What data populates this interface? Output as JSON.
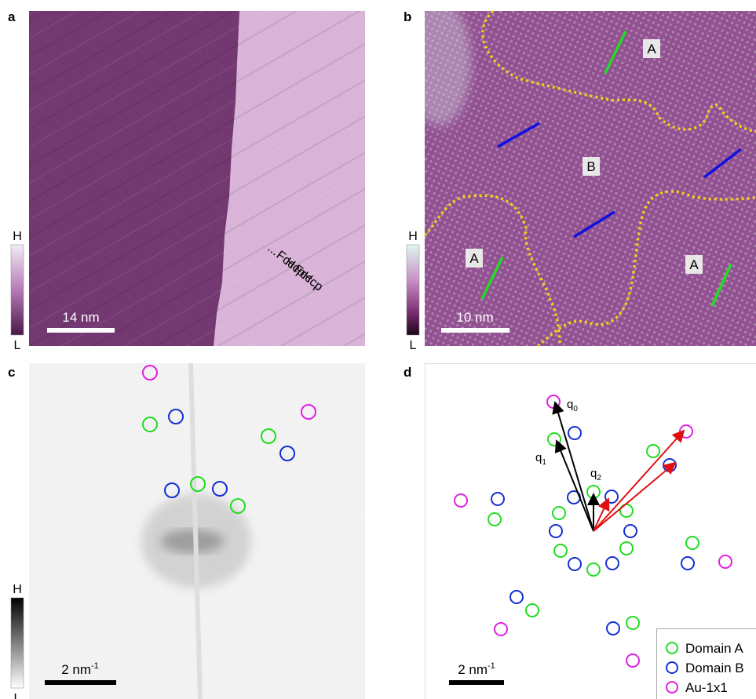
{
  "panels": [
    {
      "label": "a",
      "colorbar": {
        "high": "H",
        "low": "L"
      },
      "scale_bar": "14 nm",
      "annotations": [
        "...",
        "Fcc",
        "Hcp",
        "Fcc",
        "Hcp",
        "..."
      ]
    },
    {
      "label": "b",
      "colorbar": {
        "high": "H",
        "low": "L"
      },
      "scale_bar": "10 nm",
      "domain_labels": [
        "A",
        "B",
        "A",
        "A"
      ]
    },
    {
      "label": "c",
      "colorbar": {
        "high": "H",
        "low": "L"
      },
      "scale_bar": {
        "text": "2 nm",
        "superscript": "-1"
      }
    },
    {
      "label": "d",
      "scale_bar": {
        "text": "2 nm",
        "superscript": "-1"
      },
      "vectors": [
        {
          "symbol": "q",
          "subscript": "0"
        },
        {
          "symbol": "q",
          "subscript": "1"
        },
        {
          "symbol": "q",
          "subscript": "2"
        }
      ],
      "legend": [
        "Domain A",
        "Domain B",
        "Au-1x1"
      ]
    }
  ]
}
